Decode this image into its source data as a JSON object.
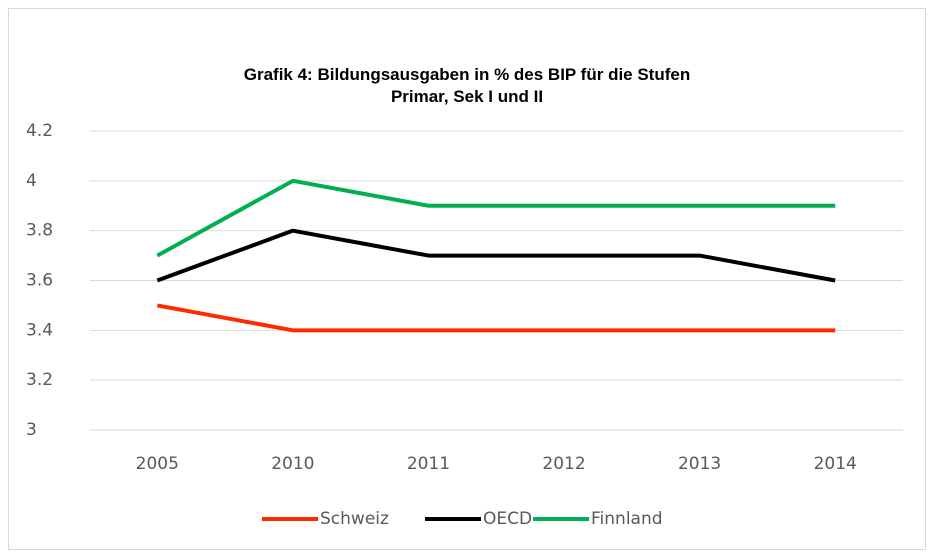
{
  "chart_data": {
    "type": "line",
    "title": "Grafik 4: Bildungsausgaben in % des BIP für die Stufen Primar, Sek I und II",
    "categories": [
      "2005",
      "2010",
      "2011",
      "2012",
      "2013",
      "2014"
    ],
    "series": [
      {
        "name": "Schweiz",
        "color": "#ff2a00",
        "values": [
          3.5,
          3.4,
          3.4,
          3.4,
          3.4,
          3.4
        ]
      },
      {
        "name": "OECD",
        "color": "#000000",
        "values": [
          3.6,
          3.8,
          3.7,
          3.7,
          3.7,
          3.6
        ]
      },
      {
        "name": "Finnland",
        "color": "#00b050",
        "values": [
          3.7,
          4,
          3.9,
          3.9,
          3.9,
          3.9
        ]
      }
    ],
    "ylim": [
      3,
      4.2
    ],
    "yticks": [
      3,
      3.2,
      3.4,
      3.6,
      3.8,
      4,
      4.2
    ],
    "grid": true,
    "legend": "bottom"
  }
}
